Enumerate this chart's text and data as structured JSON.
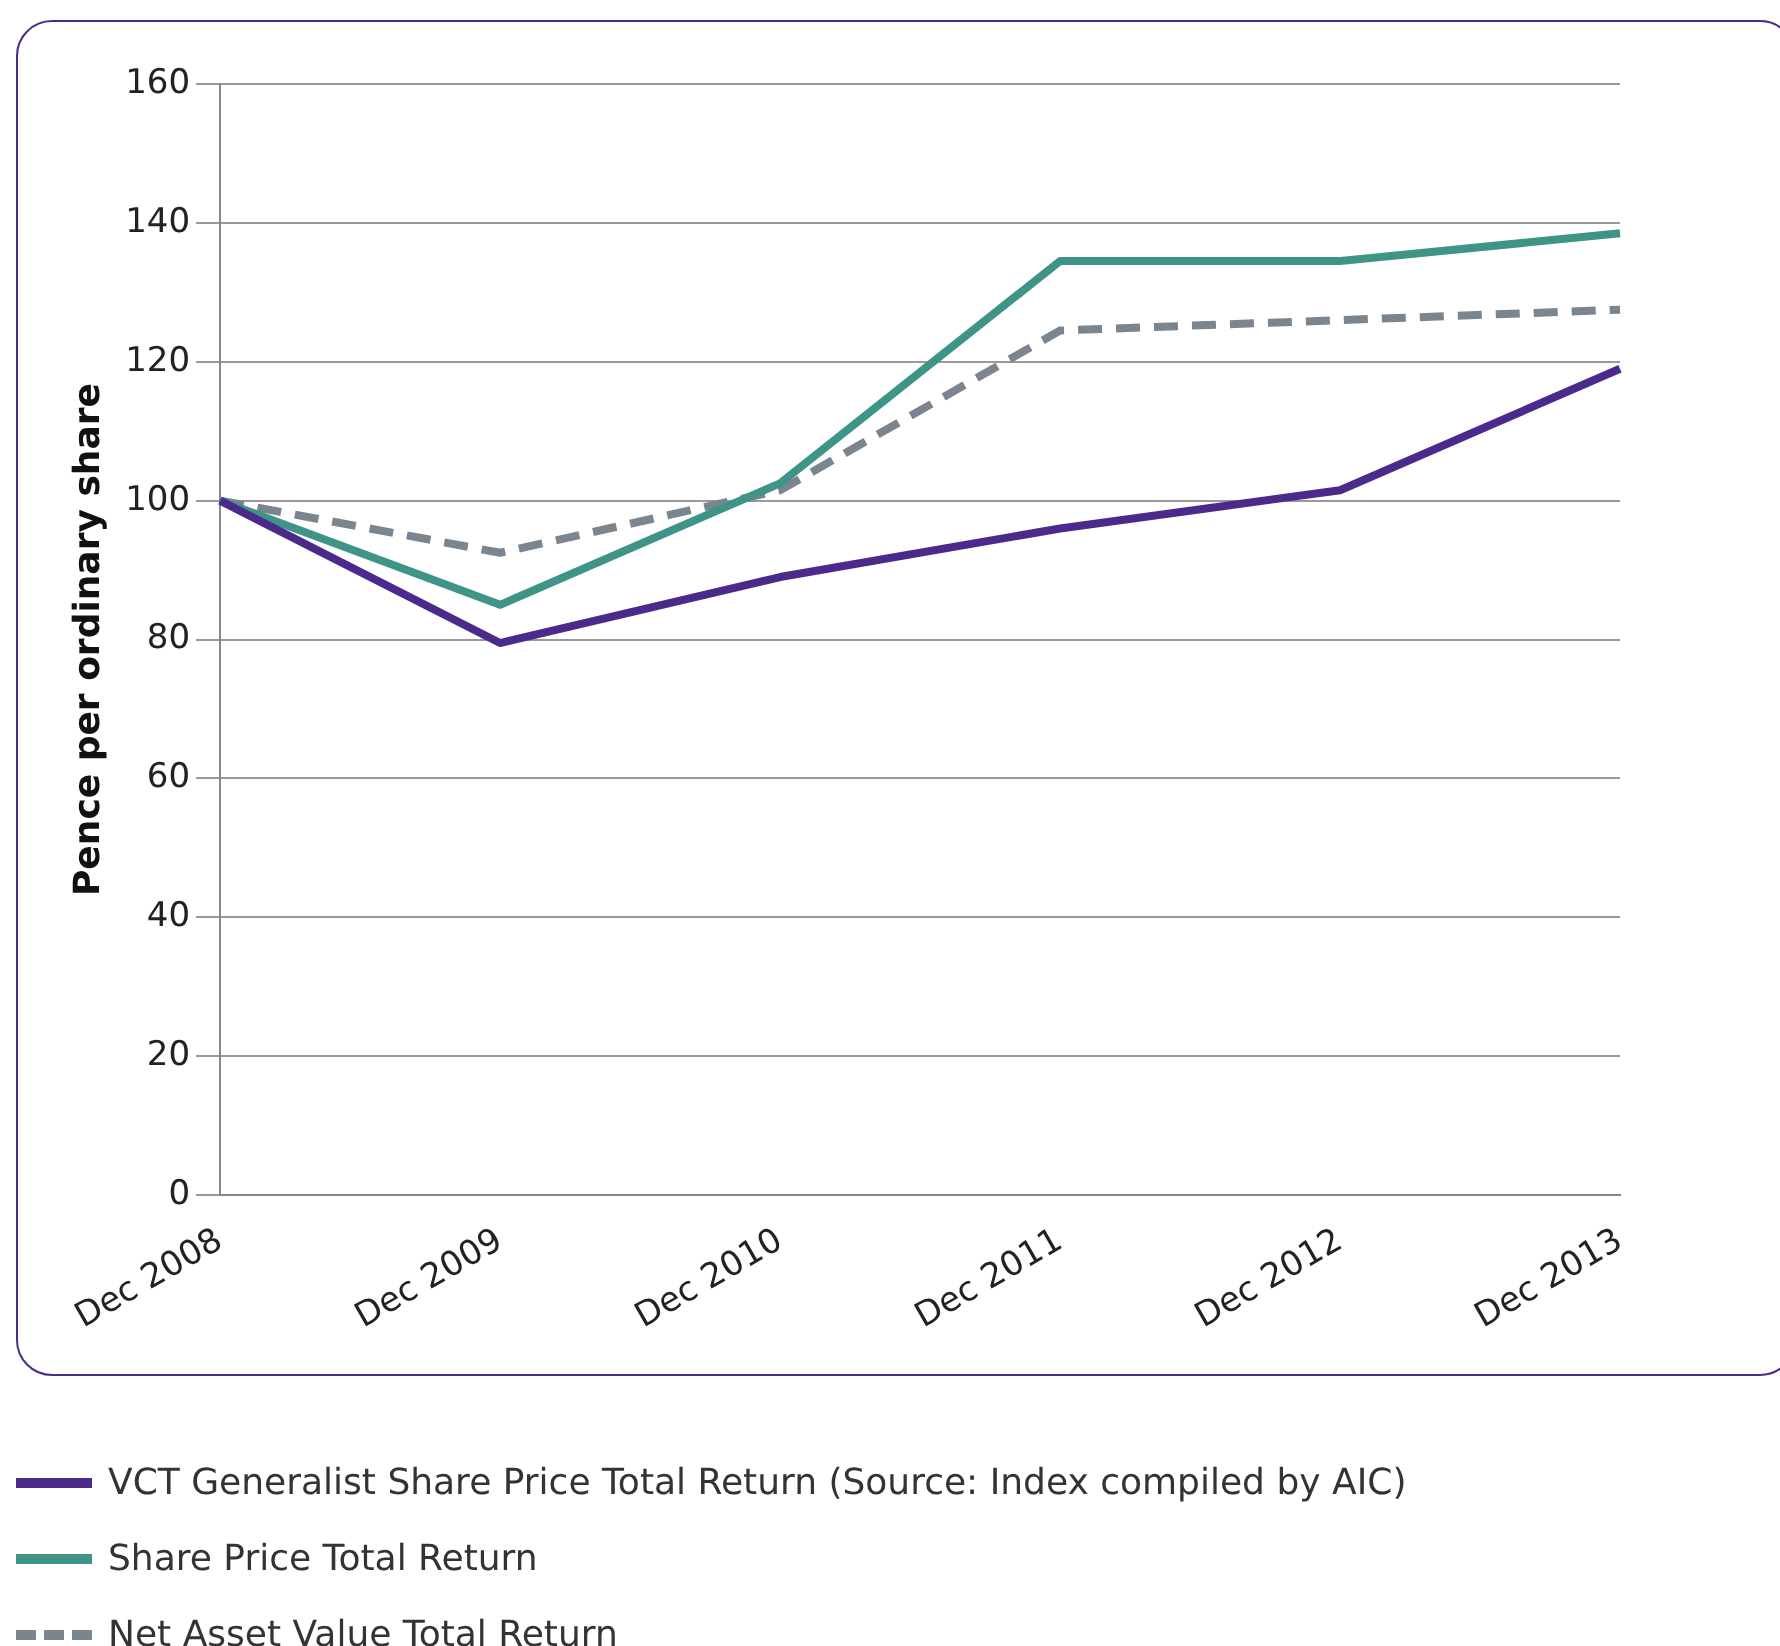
{
  "chart_data": {
    "type": "line",
    "ylabel": "Pence per ordinary share",
    "categories": [
      "Dec 2008",
      "Dec 2009",
      "Dec 2010",
      "Dec 2011",
      "Dec 2012",
      "Dec 2013"
    ],
    "ylim": [
      0,
      160
    ],
    "yticks": [
      0,
      20,
      40,
      60,
      80,
      100,
      120,
      140,
      160
    ],
    "grid": "y",
    "legend": "bottom left",
    "marker": "none",
    "series": [
      {
        "name": "VCT Generalist Share Price Total Return (Source: Index compiled by AIC)",
        "color": "#4b2a8c",
        "values": [
          100,
          79.5,
          89,
          96,
          101.5,
          119
        ],
        "line_style": "solid"
      },
      {
        "name": "Share Price Total Return",
        "color": "#3f9488",
        "values": [
          100,
          85,
          102.5,
          134.5,
          134.5,
          138.5
        ],
        "line_style": "solid"
      },
      {
        "name": "Net Asset Value Total Return",
        "color": "#7a8590",
        "values": [
          100,
          92.5,
          101.5,
          124.5,
          126,
          127.5
        ],
        "line_style": "dashed"
      }
    ]
  }
}
